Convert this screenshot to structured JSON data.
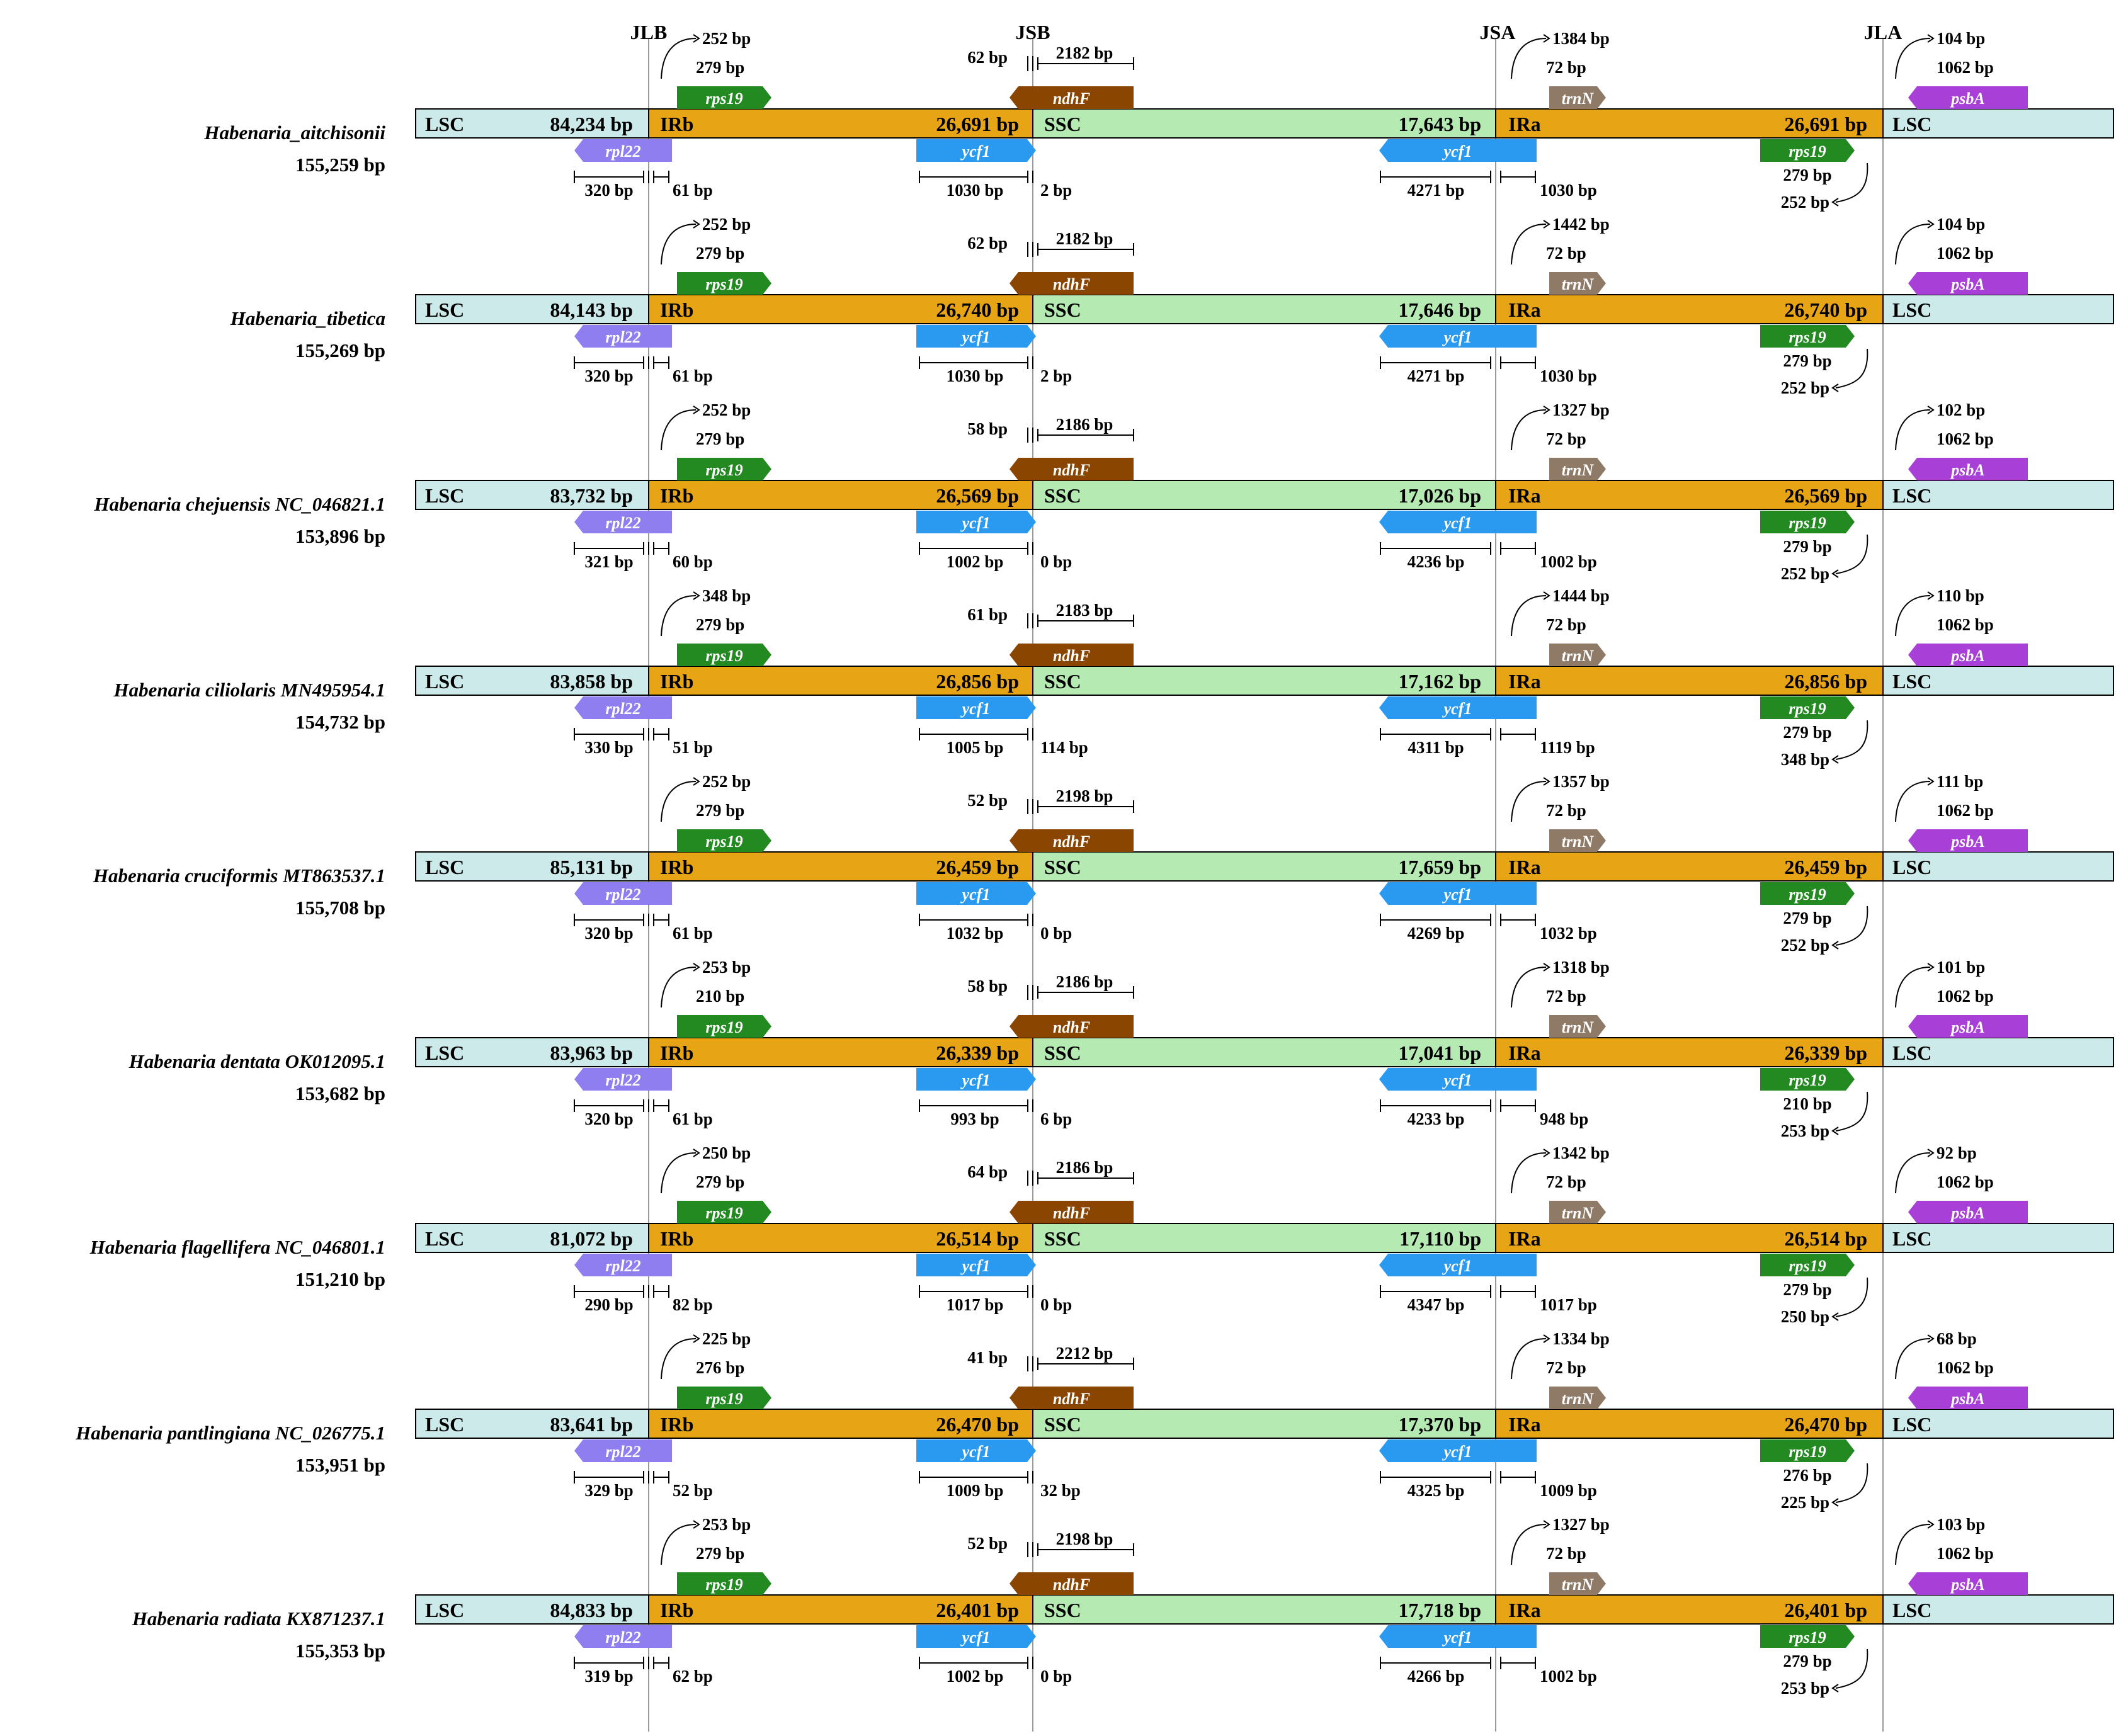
{
  "junctions": [
    "JLB",
    "JSB",
    "JSA",
    "JLA"
  ],
  "colors": {
    "LSC": "#cdeaea",
    "IR": "#e7a414",
    "SSC": "#b5eab3",
    "rpl22": "#8f7ef0",
    "rps19": "#238a21",
    "ycf1": "#2a9af0",
    "ndhF": "#8a4500",
    "trnN": "#8e7a66",
    "psbA": "#a83fd6",
    "line": "#9a9a9a"
  },
  "species": [
    {
      "name": "Habenaria_aitchisonii",
      "length": "155,259 bp",
      "regions": {
        "LSC_label": "LSC",
        "LSC": "84,234 bp",
        "IRb_label": "IRb",
        "IRb": "26,691 bp",
        "SSC_label": "SSC",
        "SSC": "17,643 bp",
        "IRa_label": "IRa",
        "IRa": "26,691 bp",
        "LSC2_label": "LSC"
      },
      "genes": {
        "rps19": "rps19",
        "ndhF": "ndhF",
        "trnN": "trnN",
        "psbA": "psbA",
        "rpl22": "rpl22",
        "ycf1b": "ycf1",
        "ycf1a": "ycf1",
        "rps19a": "rps19"
      },
      "bp": {
        "rps19_top1": "252 bp",
        "rps19_top2": "279 bp",
        "ndhF_left": "62 bp",
        "ndhF_right": "2182 bp",
        "trnN_top1": "1384 bp",
        "trnN_top2": "72 bp",
        "psbA_top1": "104 bp",
        "psbA_top2": "1062 bp",
        "rpl22_len": "320 bp",
        "rpl22_over": "61 bp",
        "ycf1b_len": "1030 bp",
        "ycf1b_over": "2 bp",
        "ycf1a_len": "4271 bp",
        "ycf1a_ir": "1030 bp",
        "rps19a_len": "279 bp",
        "rps19a_gap": "252 bp"
      }
    },
    {
      "name": "Habenaria_tibetica",
      "length": "155,269 bp",
      "regions": {
        "LSC_label": "LSC",
        "LSC": "84,143 bp",
        "IRb_label": "IRb",
        "IRb": "26,740 bp",
        "SSC_label": "SSC",
        "SSC": "17,646 bp",
        "IRa_label": "IRa",
        "IRa": "26,740 bp",
        "LSC2_label": "LSC"
      },
      "genes": {
        "rps19": "rps19",
        "ndhF": "ndhF",
        "trnN": "trnN",
        "psbA": "psbA",
        "rpl22": "rpl22",
        "ycf1b": "ycf1",
        "ycf1a": "ycf1",
        "rps19a": "rps19"
      },
      "bp": {
        "rps19_top1": "252 bp",
        "rps19_top2": "279 bp",
        "ndhF_left": "62 bp",
        "ndhF_right": "2182 bp",
        "trnN_top1": "1442 bp",
        "trnN_top2": "72 bp",
        "psbA_top1": "104 bp",
        "psbA_top2": "1062 bp",
        "rpl22_len": "320 bp",
        "rpl22_over": "61 bp",
        "ycf1b_len": "1030 bp",
        "ycf1b_over": "2 bp",
        "ycf1a_len": "4271 bp",
        "ycf1a_ir": "1030 bp",
        "rps19a_len": "279 bp",
        "rps19a_gap": "252 bp"
      }
    },
    {
      "name": "Habenaria chejuensis NC_046821.1",
      "length": "153,896 bp",
      "regions": {
        "LSC_label": "LSC",
        "LSC": "83,732 bp",
        "IRb_label": "IRb",
        "IRb": "26,569 bp",
        "SSC_label": "SSC",
        "SSC": "17,026 bp",
        "IRa_label": "IRa",
        "IRa": "26,569 bp",
        "LSC2_label": "LSC"
      },
      "genes": {
        "rps19": "rps19",
        "ndhF": "ndhF",
        "trnN": "trnN",
        "psbA": "psbA",
        "rpl22": "rpl22",
        "ycf1b": "ycf1",
        "ycf1a": "ycf1",
        "rps19a": "rps19"
      },
      "bp": {
        "rps19_top1": "252 bp",
        "rps19_top2": "279 bp",
        "ndhF_left": "58 bp",
        "ndhF_right": "2186 bp",
        "trnN_top1": "1327 bp",
        "trnN_top2": "72 bp",
        "psbA_top1": "102 bp",
        "psbA_top2": "1062 bp",
        "rpl22_len": "321 bp",
        "rpl22_over": "60 bp",
        "ycf1b_len": "1002 bp",
        "ycf1b_over": "0 bp",
        "ycf1a_len": "4236 bp",
        "ycf1a_ir": "1002 bp",
        "rps19a_len": "279 bp",
        "rps19a_gap": "252 bp"
      }
    },
    {
      "name": "Habenaria ciliolaris MN495954.1",
      "length": "154,732 bp",
      "regions": {
        "LSC_label": "LSC",
        "LSC": "83,858 bp",
        "IRb_label": "IRb",
        "IRb": "26,856 bp",
        "SSC_label": "SSC",
        "SSC": "17,162 bp",
        "IRa_label": "IRa",
        "IRa": "26,856 bp",
        "LSC2_label": "LSC"
      },
      "genes": {
        "rps19": "rps19",
        "ndhF": "ndhF",
        "trnN": "trnN",
        "psbA": "psbA",
        "rpl22": "rpl22",
        "ycf1b": "ycf1",
        "ycf1a": "ycf1",
        "rps19a": "rps19"
      },
      "bp": {
        "rps19_top1": "348 bp",
        "rps19_top2": "279 bp",
        "ndhF_left": "61 bp",
        "ndhF_right": "2183 bp",
        "trnN_top1": "1444 bp",
        "trnN_top2": "72 bp",
        "psbA_top1": "110 bp",
        "psbA_top2": "1062 bp",
        "rpl22_len": "330 bp",
        "rpl22_over": "51 bp",
        "ycf1b_len": "1005 bp",
        "ycf1b_over": "114 bp",
        "ycf1a_len": "4311 bp",
        "ycf1a_ir": "1119 bp",
        "rps19a_len": "279 bp",
        "rps19a_gap": "348 bp"
      }
    },
    {
      "name": "Habenaria cruciformis MT863537.1",
      "length": "155,708 bp",
      "regions": {
        "LSC_label": "LSC",
        "LSC": "85,131 bp",
        "IRb_label": "IRb",
        "IRb": "26,459 bp",
        "SSC_label": "SSC",
        "SSC": "17,659 bp",
        "IRa_label": "IRa",
        "IRa": "26,459 bp",
        "LSC2_label": "LSC"
      },
      "genes": {
        "rps19": "rps19",
        "ndhF": "ndhF",
        "trnN": "trnN",
        "psbA": "psbA",
        "rpl22": "rpl22",
        "ycf1b": "ycf1",
        "ycf1a": "ycf1",
        "rps19a": "rps19"
      },
      "bp": {
        "rps19_top1": "252 bp",
        "rps19_top2": "279 bp",
        "ndhF_left": "52 bp",
        "ndhF_right": "2198 bp",
        "trnN_top1": "1357 bp",
        "trnN_top2": "72 bp",
        "psbA_top1": "111 bp",
        "psbA_top2": "1062 bp",
        "rpl22_len": "320 bp",
        "rpl22_over": "61 bp",
        "ycf1b_len": "1032 bp",
        "ycf1b_over": "0 bp",
        "ycf1a_len": "4269 bp",
        "ycf1a_ir": "1032 bp",
        "rps19a_len": "279 bp",
        "rps19a_gap": "252 bp"
      }
    },
    {
      "name": "Habenaria dentata OK012095.1",
      "length": "153,682 bp",
      "regions": {
        "LSC_label": "LSC",
        "LSC": "83,963 bp",
        "IRb_label": "IRb",
        "IRb": "26,339 bp",
        "SSC_label": "SSC",
        "SSC": "17,041 bp",
        "IRa_label": "IRa",
        "IRa": "26,339 bp",
        "LSC2_label": "LSC"
      },
      "genes": {
        "rps19": "rps19",
        "ndhF": "ndhF",
        "trnN": "trnN",
        "psbA": "psbA",
        "rpl22": "rpl22",
        "ycf1b": "ycf1",
        "ycf1a": "ycf1",
        "rps19a": "rps19"
      },
      "bp": {
        "rps19_top1": "253 bp",
        "rps19_top2": "210 bp",
        "ndhF_left": "58 bp",
        "ndhF_right": "2186 bp",
        "trnN_top1": "1318 bp",
        "trnN_top2": "72 bp",
        "psbA_top1": "101 bp",
        "psbA_top2": "1062 bp",
        "rpl22_len": "320 bp",
        "rpl22_over": "61 bp",
        "ycf1b_len": "993 bp",
        "ycf1b_over": "6 bp",
        "ycf1a_len": "4233 bp",
        "ycf1a_ir": "948 bp",
        "rps19a_len": "210 bp",
        "rps19a_gap": "253 bp"
      }
    },
    {
      "name": "Habenaria flagellifera NC_046801.1",
      "length": "151,210 bp",
      "regions": {
        "LSC_label": "LSC",
        "LSC": "81,072 bp",
        "IRb_label": "IRb",
        "IRb": "26,514 bp",
        "SSC_label": "SSC",
        "SSC": "17,110 bp",
        "IRa_label": "IRa",
        "IRa": "26,514 bp",
        "LSC2_label": "LSC"
      },
      "genes": {
        "rps19": "rps19",
        "ndhF": "ndhF",
        "trnN": "trnN",
        "psbA": "psbA",
        "rpl22": "rpl22",
        "ycf1b": "ycf1",
        "ycf1a": "ycf1",
        "rps19a": "rps19"
      },
      "bp": {
        "rps19_top1": "250 bp",
        "rps19_top2": "279 bp",
        "ndhF_left": "64 bp",
        "ndhF_right": "2186 bp",
        "trnN_top1": "1342 bp",
        "trnN_top2": "72 bp",
        "psbA_top1": "92 bp",
        "psbA_top2": "1062 bp",
        "rpl22_len": "290 bp",
        "rpl22_over": "82 bp",
        "ycf1b_len": "1017 bp",
        "ycf1b_over": "0 bp",
        "ycf1a_len": "4347 bp",
        "ycf1a_ir": "1017 bp",
        "rps19a_len": "279 bp",
        "rps19a_gap": "250 bp"
      }
    },
    {
      "name": "Habenaria pantlingiana NC_026775.1",
      "length": "153,951 bp",
      "regions": {
        "LSC_label": "LSC",
        "LSC": "83,641 bp",
        "IRb_label": "IRb",
        "IRb": "26,470 bp",
        "SSC_label": "SSC",
        "SSC": "17,370 bp",
        "IRa_label": "IRa",
        "IRa": "26,470 bp",
        "LSC2_label": "LSC"
      },
      "genes": {
        "rps19": "rps19",
        "ndhF": "ndhF",
        "trnN": "trnN",
        "psbA": "psbA",
        "rpl22": "rpl22",
        "ycf1b": "ycf1",
        "ycf1a": "ycf1",
        "rps19a": "rps19"
      },
      "bp": {
        "rps19_top1": "225 bp",
        "rps19_top2": "276 bp",
        "ndhF_left": "41 bp",
        "ndhF_right": "2212 bp",
        "trnN_top1": "1334 bp",
        "trnN_top2": "72 bp",
        "psbA_top1": "68 bp",
        "psbA_top2": "1062 bp",
        "rpl22_len": "329 bp",
        "rpl22_over": "52 bp",
        "ycf1b_len": "1009 bp",
        "ycf1b_over": "32 bp",
        "ycf1a_len": "4325 bp",
        "ycf1a_ir": "1009 bp",
        "rps19a_len": "276 bp",
        "rps19a_gap": "225 bp"
      }
    },
    {
      "name": "Habenaria radiata KX871237.1",
      "length": "155,353 bp",
      "regions": {
        "LSC_label": "LSC",
        "LSC": "84,833 bp",
        "IRb_label": "IRb",
        "IRb": "26,401 bp",
        "SSC_label": "SSC",
        "SSC": "17,718 bp",
        "IRa_label": "IRa",
        "IRa": "26,401 bp",
        "LSC2_label": "LSC"
      },
      "genes": {
        "rps19": "rps19",
        "ndhF": "ndhF",
        "trnN": "trnN",
        "psbA": "psbA",
        "rpl22": "rpl22",
        "ycf1b": "ycf1",
        "ycf1a": "ycf1",
        "rps19a": "rps19"
      },
      "bp": {
        "rps19_top1": "253 bp",
        "rps19_top2": "279 bp",
        "ndhF_left": "52 bp",
        "ndhF_right": "2198 bp",
        "trnN_top1": "1327 bp",
        "trnN_top2": "72 bp",
        "psbA_top1": "103 bp",
        "psbA_top2": "1062 bp",
        "rpl22_len": "319 bp",
        "rpl22_over": "62 bp",
        "ycf1b_len": "1002 bp",
        "ycf1b_over": "0 bp",
        "ycf1a_len": "4266 bp",
        "ycf1a_ir": "1002 bp",
        "rps19a_len": "279 bp",
        "rps19a_gap": "253 bp"
      }
    }
  ]
}
